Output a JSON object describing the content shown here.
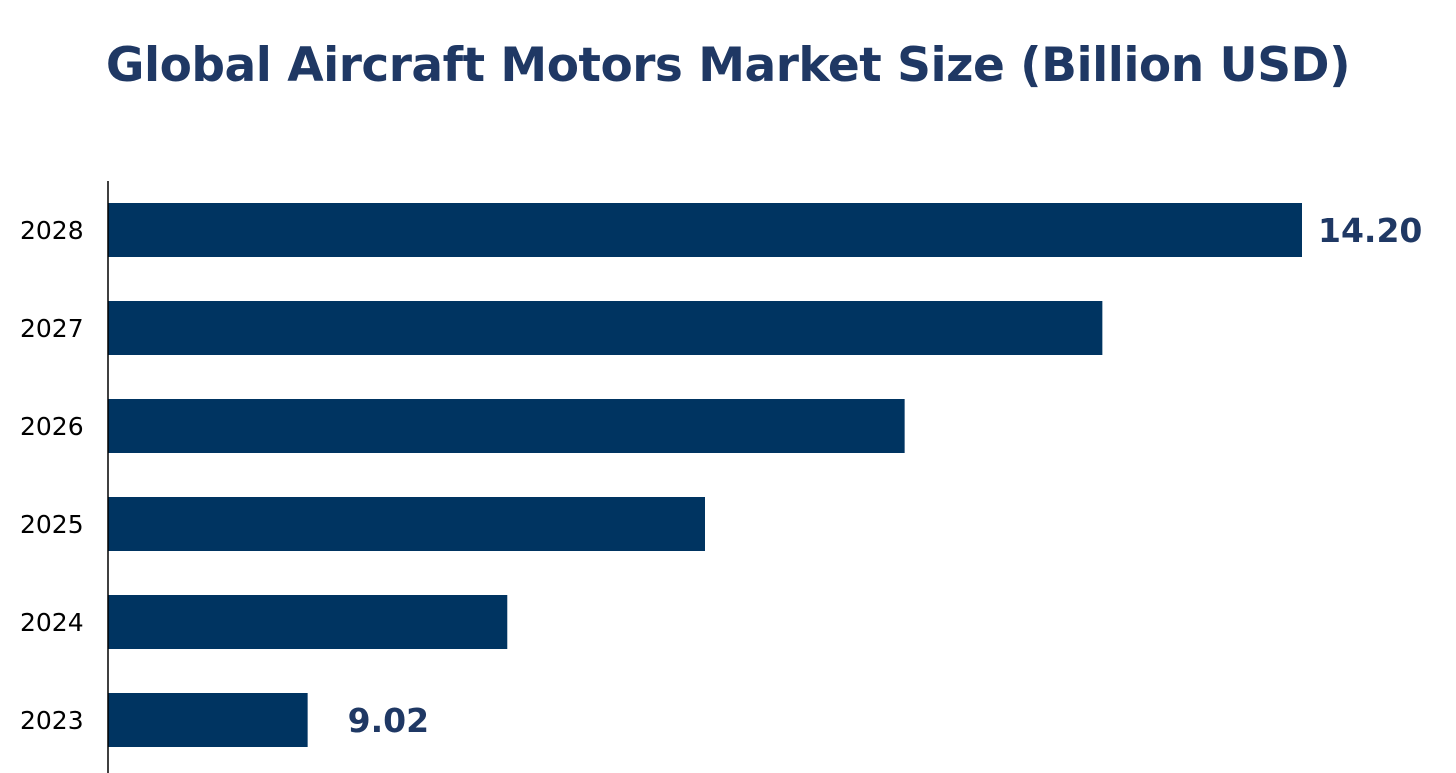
{
  "chart_data": {
    "type": "bar",
    "orientation": "horizontal",
    "title": "Global Aircraft Motors Market Size (Billion USD)",
    "xlabel": "",
    "ylabel": "",
    "categories": [
      "2023",
      "2024",
      "2025",
      "2026",
      "2027",
      "2028"
    ],
    "values": [
      9.02,
      10.06,
      11.09,
      12.13,
      13.16,
      14.2
    ],
    "data_labels": {
      "2023": "9.02",
      "2028": "14.20"
    },
    "xlim": [
      7.98,
      14.2
    ],
    "grid": false,
    "legend": "none",
    "colors": {
      "bar": "#003461",
      "title": "#1f3864",
      "label": "#1f3864",
      "axis": "#000000"
    }
  }
}
